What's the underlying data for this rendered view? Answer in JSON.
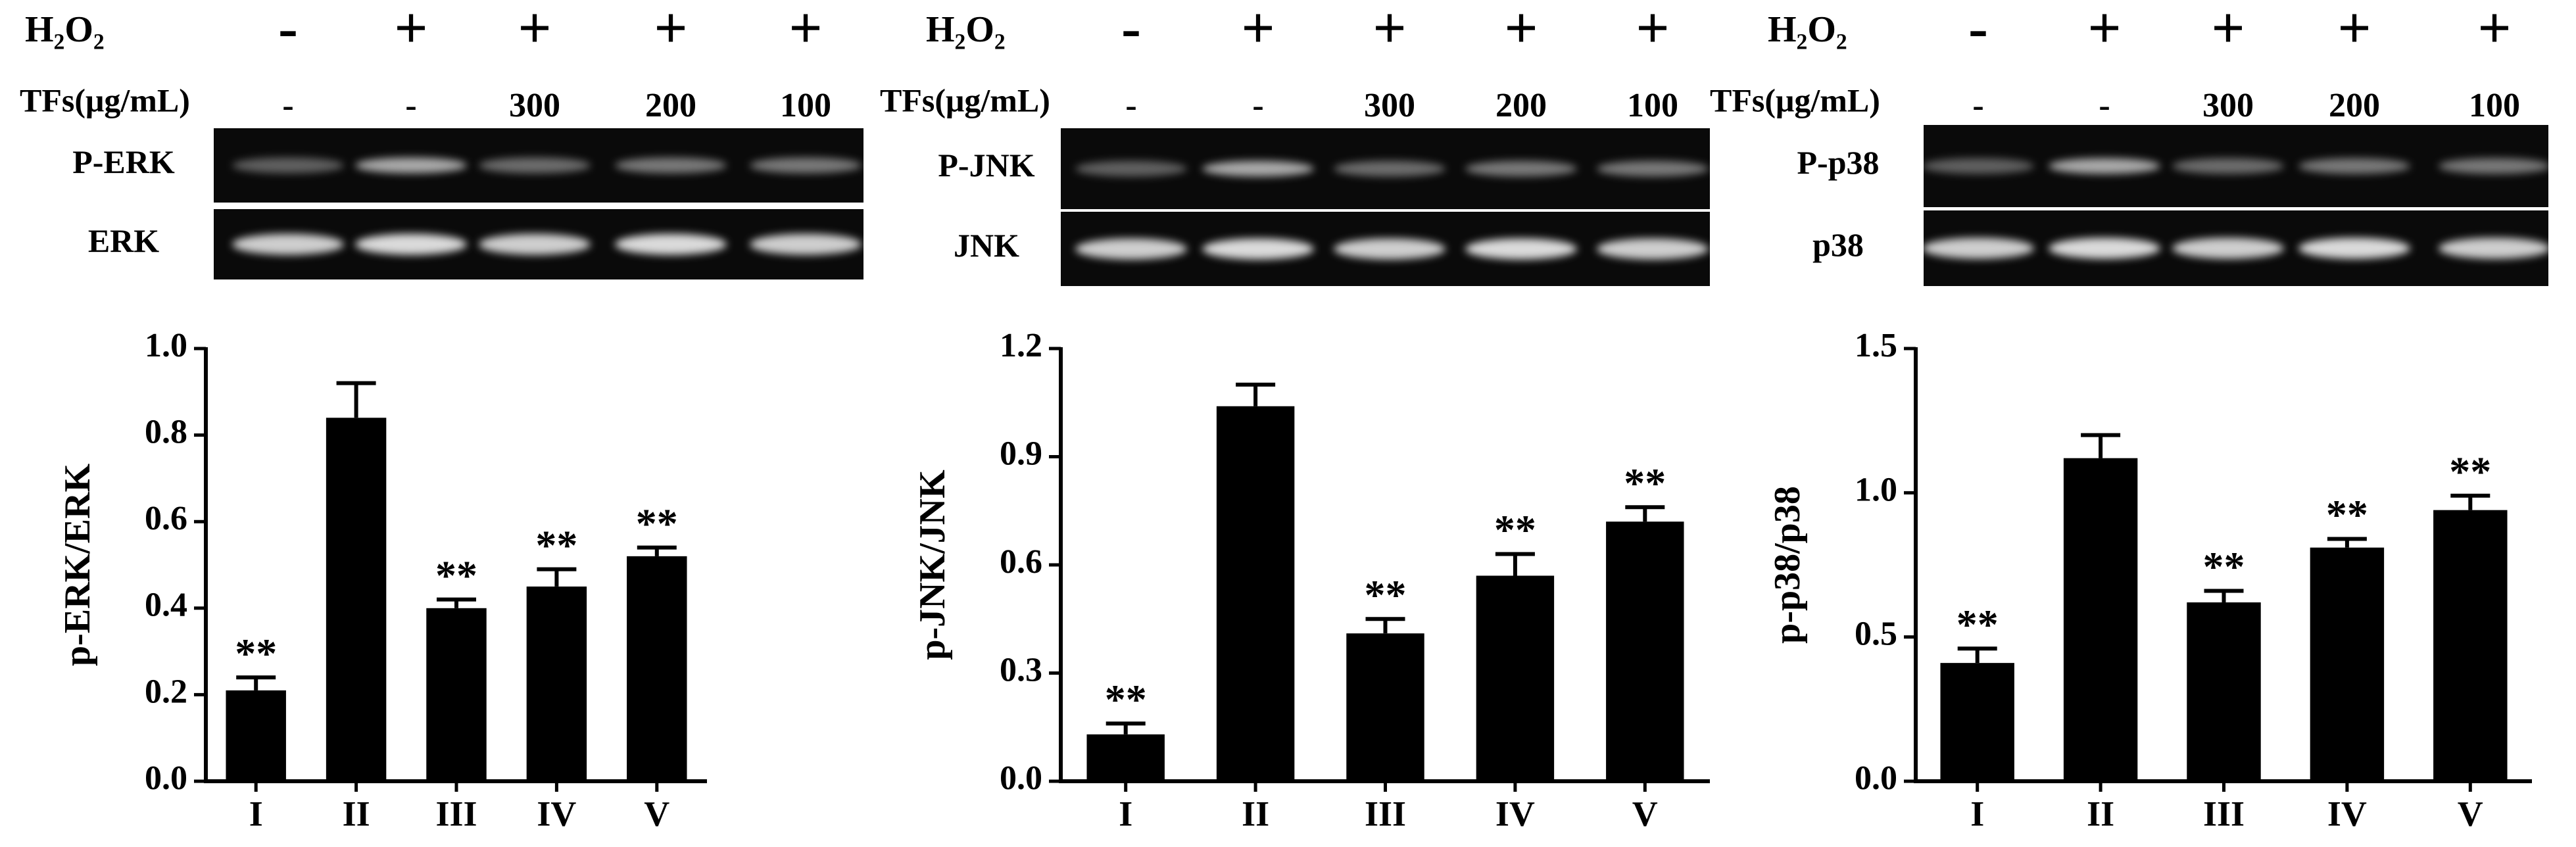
{
  "chart_data": [
    {
      "type": "bar",
      "ylabel": "p-ERK/ERK",
      "categories": [
        "I",
        "II",
        "III",
        "IV",
        "V"
      ],
      "values": [
        0.21,
        0.84,
        0.4,
        0.45,
        0.52
      ],
      "errors": [
        0.03,
        0.08,
        0.02,
        0.04,
        0.02
      ],
      "significance": [
        "**",
        null,
        "**",
        "**",
        "**"
      ],
      "color": "#000000",
      "ylim": [
        0,
        1.0
      ],
      "yticks": [
        {
          "value": 0,
          "label": "0.0"
        },
        {
          "value": 0.2,
          "label": "0.2"
        },
        {
          "value": 0.4,
          "label": "0.4"
        },
        {
          "value": 0.6,
          "label": "0.6"
        },
        {
          "value": 0.8,
          "label": "0.8"
        },
        {
          "value": 1.0,
          "label": "1.0"
        }
      ]
    },
    {
      "type": "bar",
      "ylabel": "p-JNK/JNK",
      "categories": [
        "I",
        "II",
        "III",
        "IV",
        "V"
      ],
      "values": [
        0.13,
        1.04,
        0.41,
        0.57,
        0.72
      ],
      "errors": [
        0.03,
        0.06,
        0.04,
        0.06,
        0.04
      ],
      "significance": [
        "**",
        null,
        "**",
        "**",
        "**"
      ],
      "color": "#000000",
      "ylim": [
        0,
        1.2
      ],
      "yticks": [
        {
          "value": 0,
          "label": "0.0"
        },
        {
          "value": 0.3,
          "label": "0.3"
        },
        {
          "value": 0.6,
          "label": "0.6"
        },
        {
          "value": 0.9,
          "label": "0.9"
        },
        {
          "value": 1.2,
          "label": "1.2"
        }
      ]
    },
    {
      "type": "bar",
      "ylabel": "p-p38/p38",
      "categories": [
        "I",
        "II",
        "III",
        "IV",
        "V"
      ],
      "values": [
        0.41,
        1.12,
        0.62,
        0.81,
        0.94
      ],
      "errors": [
        0.05,
        0.08,
        0.04,
        0.03,
        0.05
      ],
      "significance": [
        "**",
        null,
        "**",
        "**",
        "**"
      ],
      "color": "#000000",
      "ylim": [
        0,
        1.5
      ],
      "yticks": [
        {
          "value": 0,
          "label": "0.0"
        },
        {
          "value": 0.5,
          "label": "0.5"
        },
        {
          "value": 1.0,
          "label": "1.0"
        },
        {
          "value": 1.5,
          "label": "1.5"
        }
      ]
    }
  ],
  "blots": [
    {
      "h2o2_label": "H₂O₂",
      "h2o2": [
        "-",
        "+",
        "+",
        "+",
        "+"
      ],
      "tfs_label": "TFs(μg/mL)",
      "tfs": [
        "-",
        "-",
        "300",
        "200",
        "100"
      ],
      "bands": [
        "P-ERK",
        "ERK"
      ]
    },
    {
      "h2o2_label": "H₂O₂",
      "h2o2": [
        "-",
        "+",
        "+",
        "+",
        "+"
      ],
      "tfs_label": "TFs(μg/mL)",
      "tfs": [
        "-",
        "-",
        "300",
        "200",
        "100"
      ],
      "bands": [
        "P-JNK",
        "JNK"
      ]
    },
    {
      "h2o2_label": "H₂O₂",
      "h2o2": [
        "-",
        "+",
        "+",
        "+",
        "+"
      ],
      "tfs_label": "TFs(μg/mL)",
      "tfs": [
        "-",
        "-",
        "300",
        "200",
        "100"
      ],
      "bands": [
        "P-p38",
        "p38"
      ]
    }
  ]
}
